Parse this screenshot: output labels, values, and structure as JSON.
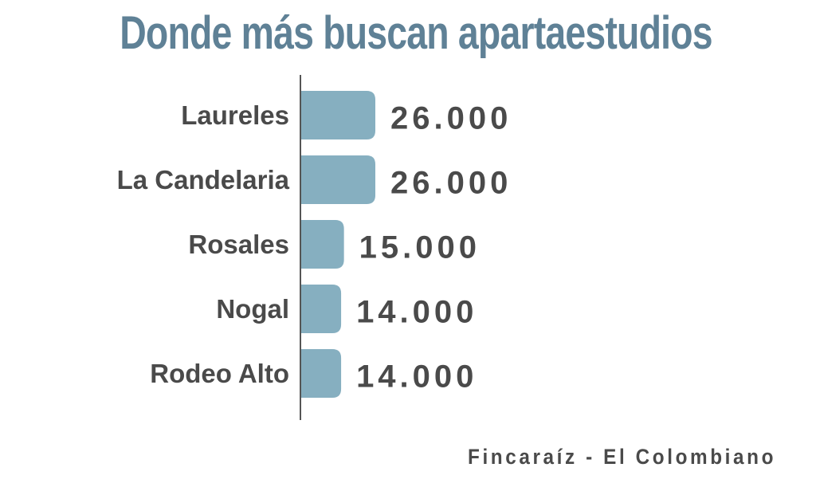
{
  "chart_data": {
    "type": "bar",
    "orientation": "horizontal",
    "title": "Donde más buscan apartaestudios",
    "categories": [
      "Laureles",
      "La Candelaria",
      "Rosales",
      "Nogal",
      "Rodeo Alto"
    ],
    "values": [
      26000,
      26000,
      15000,
      14000,
      14000
    ],
    "value_labels": [
      "26.000",
      "26.000",
      "15.000",
      "14.000",
      "14.000"
    ],
    "xlim": [
      0,
      26000
    ],
    "grid": false,
    "legend": "none",
    "colors": {
      "bar": "#86afc0",
      "title": "#5f8196",
      "text": "#4a4a4a",
      "axis": "#555555"
    }
  },
  "source": "Fincaraíz - El Colombiano"
}
